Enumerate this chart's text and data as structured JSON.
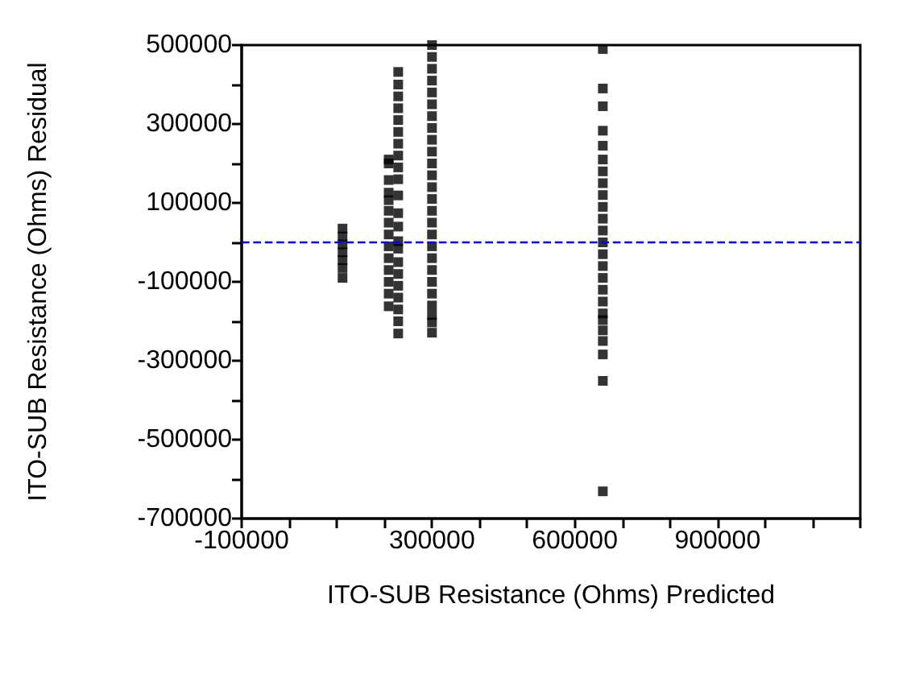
{
  "chart_data": {
    "type": "scatter",
    "xlabel": "ITO-SUB Resistance (Ohms) Predicted",
    "ylabel": "ITO-SUB Resistance (Ohms) Residual",
    "marker": "square",
    "grid": false,
    "xlim": [
      -100000,
      1200000
    ],
    "xticks": [
      -100000,
      {
        "value": 0,
        "label": null
      },
      {
        "value": 100000,
        "label": null
      },
      {
        "value": 200000,
        "label": null
      },
      300000,
      {
        "value": 400000,
        "label": null
      },
      {
        "value": 500000,
        "label": null
      },
      600000,
      {
        "value": 700000,
        "label": null
      },
      {
        "value": 800000,
        "label": null
      },
      900000,
      {
        "value": 1000000,
        "label": null
      },
      {
        "value": 1100000,
        "label": null
      },
      {
        "value": 1200000,
        "label": null
      }
    ],
    "ylim": [
      -700000,
      500000
    ],
    "yticks": [
      -700000,
      {
        "value": -600000,
        "label": null
      },
      -500000,
      {
        "value": -400000,
        "label": null
      },
      -300000,
      {
        "value": -200000,
        "label": null
      },
      -100000,
      {
        "value": 0,
        "label": null
      },
      100000,
      {
        "value": 200000,
        "label": null
      },
      300000,
      {
        "value": 400000,
        "label": null
      },
      500000
    ],
    "ref_lines": [
      {
        "axis": "y",
        "value": 0,
        "color": "#0000ff",
        "line_style": "dashed"
      }
    ],
    "series": [
      {
        "color": "#000000",
        "x": [
          112000,
          112000,
          112000,
          112000,
          112000,
          112000,
          112000
        ],
        "values": [
          35000,
          15000,
          -5000,
          -25000,
          -45000,
          -65000,
          -90000
        ]
      },
      {
        "color": "#000000",
        "x": [
          209000,
          209000,
          209000,
          209000,
          209000,
          209000,
          209000,
          209000,
          209000,
          209000,
          209000,
          209000,
          209000,
          209000
        ],
        "values": [
          210000,
          200000,
          158000,
          126000,
          107000,
          80000,
          50000,
          20000,
          -10000,
          -40000,
          -70000,
          -100000,
          -130000,
          -162000
        ]
      },
      {
        "color": "#000000",
        "x": [
          229000,
          229000,
          229000,
          229000,
          229000,
          229000,
          229000,
          229000,
          229000,
          229000,
          229000,
          229000,
          229000,
          229000,
          229000,
          229000,
          229000,
          229000,
          229000,
          229000,
          229000,
          229000
        ],
        "values": [
          432000,
          400000,
          370000,
          340000,
          310000,
          280000,
          250000,
          220000,
          190000,
          160000,
          119000,
          74000,
          40000,
          3000,
          -16000,
          -50000,
          -80000,
          -110000,
          -140000,
          -170000,
          -200000,
          -231000
        ]
      },
      {
        "color": "#000000",
        "x": [
          300000,
          300000,
          300000,
          300000,
          300000,
          300000,
          300000,
          300000,
          300000,
          300000,
          300000,
          300000,
          300000,
          300000,
          300000,
          300000,
          300000,
          300000,
          300000,
          300000,
          300000,
          300000,
          300000,
          300000,
          300000,
          300000
        ],
        "values": [
          500000,
          470000,
          440000,
          410000,
          380000,
          350000,
          320000,
          290000,
          260000,
          230000,
          200000,
          170000,
          140000,
          110000,
          80000,
          50000,
          20000,
          -10000,
          -40000,
          -70000,
          -100000,
          -130000,
          -160000,
          -184000,
          -203000,
          -229000
        ]
      },
      {
        "color": "#000000",
        "x": [
          659000,
          659000,
          659000,
          659000,
          659000,
          659000,
          659000,
          659000,
          659000,
          659000,
          659000,
          659000,
          659000,
          659000,
          659000,
          659000,
          659000,
          659000,
          659000,
          659000,
          659000,
          659000,
          659000,
          659000,
          659000
        ],
        "values": [
          490000,
          390000,
          345000,
          283000,
          245000,
          210000,
          180000,
          150000,
          120000,
          90000,
          60000,
          30000,
          0,
          -30000,
          -60000,
          -90000,
          -120000,
          -150000,
          -180000,
          -197000,
          -223000,
          -250000,
          -284000,
          -351000,
          -631000
        ]
      }
    ]
  }
}
